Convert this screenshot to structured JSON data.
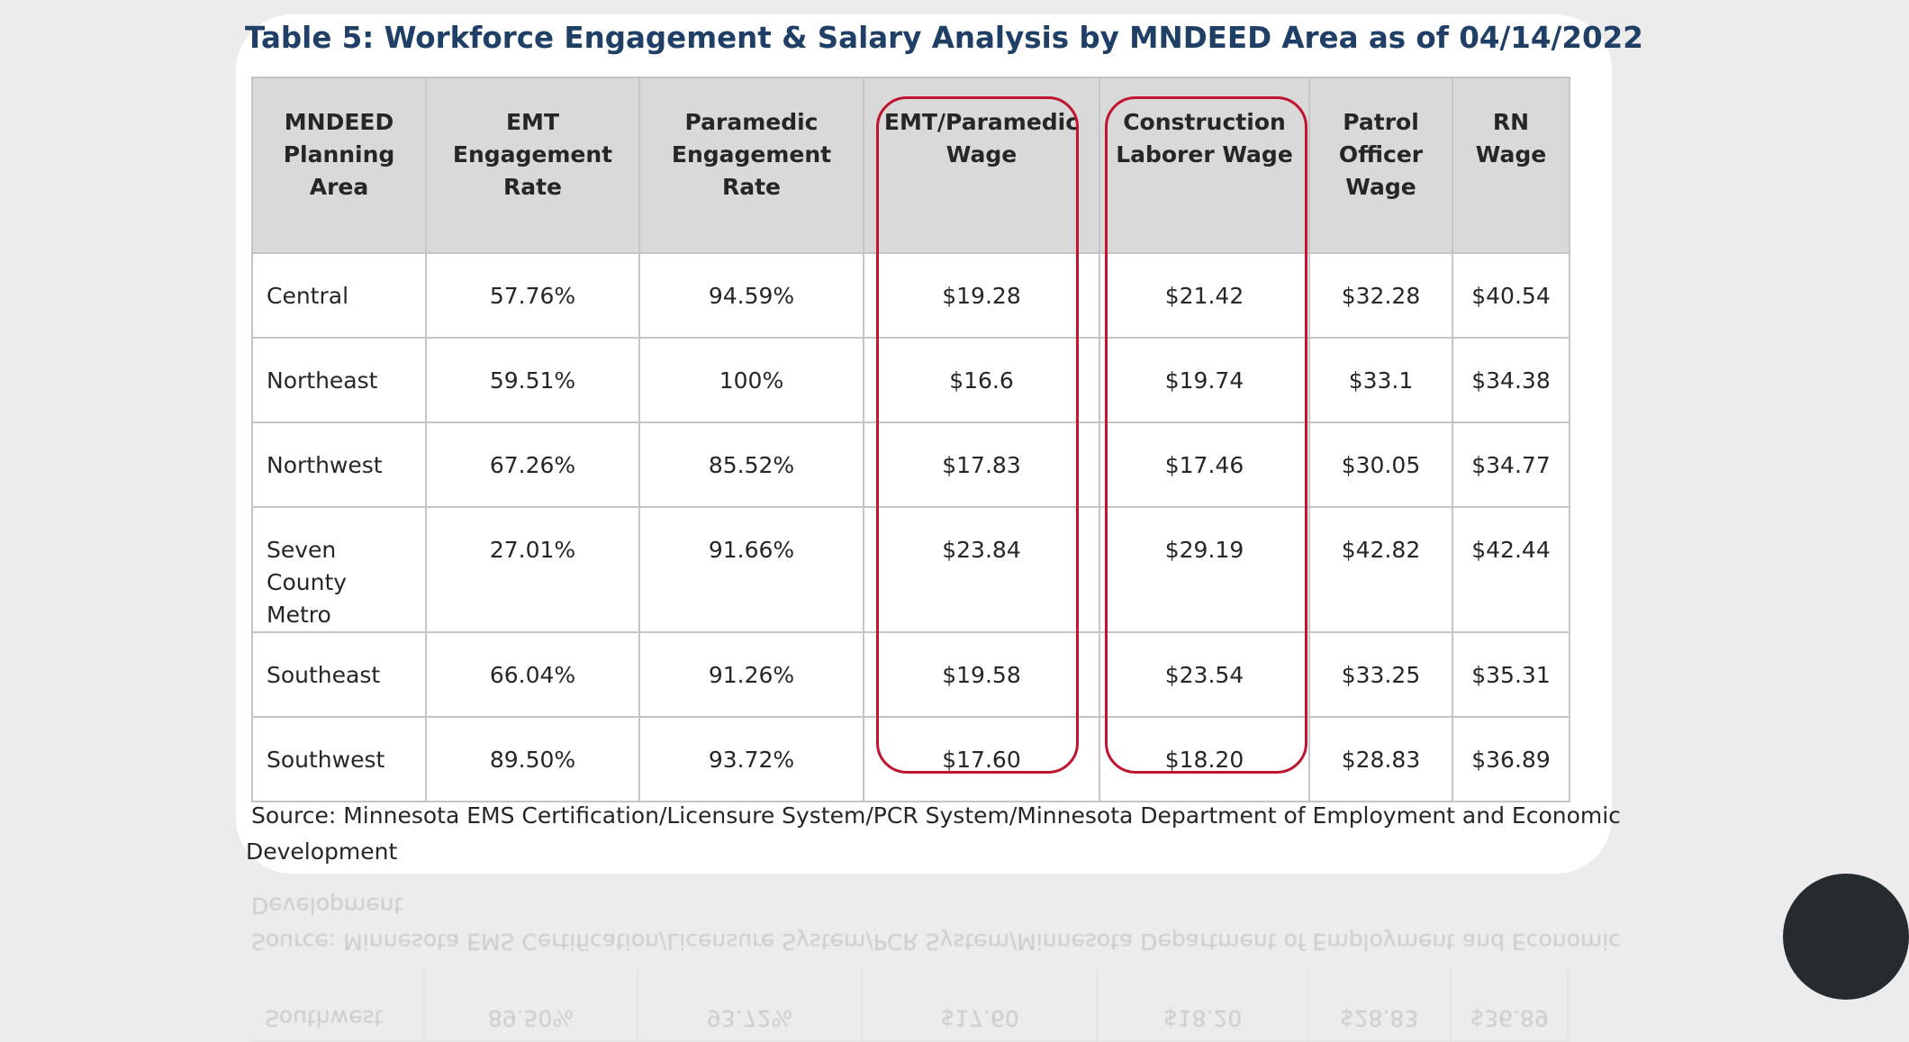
{
  "title": "Table 5: Workforce Engagement & Salary Analysis by MNDEED Area as of 04/14/2022",
  "table": {
    "headers": [
      [
        "MNDEED",
        "Planning",
        "Area"
      ],
      [
        "EMT",
        "Engagement",
        "Rate"
      ],
      [
        "Paramedic",
        "Engagement Rate"
      ],
      [
        "EMT/Paramedic",
        "Wage"
      ],
      [
        "Construction",
        "Laborer Wage"
      ],
      [
        "Patrol",
        "Officer",
        "Wage"
      ],
      [
        "RN",
        "Wage"
      ]
    ],
    "rows": [
      {
        "area": [
          "Central"
        ],
        "emt_rate": "57.76%",
        "paramedic_rate": "94.59%",
        "emt_paramedic_wage": "$19.28",
        "construction_wage": "$21.42",
        "patrol_wage": "$32.28",
        "rn_wage": "$40.54"
      },
      {
        "area": [
          "Northeast"
        ],
        "emt_rate": "59.51%",
        "paramedic_rate": "100%",
        "emt_paramedic_wage": "$16.6",
        "construction_wage": "$19.74",
        "patrol_wage": "$33.1",
        "rn_wage": "$34.38"
      },
      {
        "area": [
          "Northwest"
        ],
        "emt_rate": "67.26%",
        "paramedic_rate": "85.52%",
        "emt_paramedic_wage": "$17.83",
        "construction_wage": "$17.46",
        "patrol_wage": "$30.05",
        "rn_wage": "$34.77"
      },
      {
        "area": [
          "Seven County",
          "Metro"
        ],
        "emt_rate": "27.01%",
        "paramedic_rate": "91.66%",
        "emt_paramedic_wage": "$23.84",
        "construction_wage": "$29.19",
        "patrol_wage": "$42.82",
        "rn_wage": "$42.44"
      },
      {
        "area": [
          "Southeast"
        ],
        "emt_rate": "66.04%",
        "paramedic_rate": "91.26%",
        "emt_paramedic_wage": "$19.58",
        "construction_wage": "$23.54",
        "patrol_wage": "$33.25",
        "rn_wage": "$35.31"
      },
      {
        "area": [
          "Southwest"
        ],
        "emt_rate": "89.50%",
        "paramedic_rate": "93.72%",
        "emt_paramedic_wage": "$17.60",
        "construction_wage": "$18.20",
        "patrol_wage": "$28.83",
        "rn_wage": "$36.89"
      }
    ]
  },
  "source": {
    "line1": "Source: Minnesota EMS Certification/Licensure System/PCR System/Minnesota Department of Employment and Economic",
    "line2": "Development"
  },
  "colors": {
    "title": "#1f3f66",
    "header_bg": "#d9d9d9",
    "highlight": "#c0142f",
    "background": "#ececec",
    "fab": "#262b30"
  }
}
